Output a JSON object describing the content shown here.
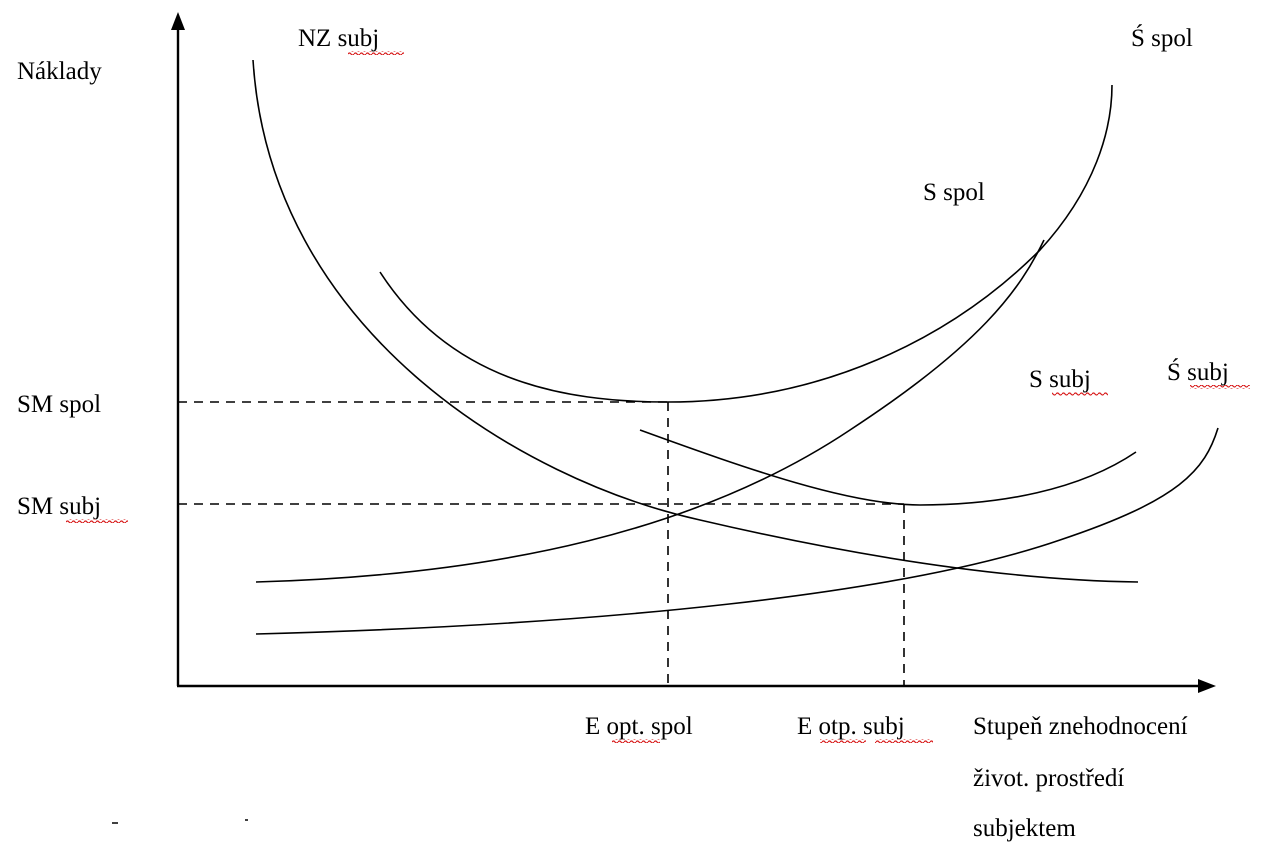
{
  "axes": {
    "y_label": "Náklady",
    "x_label_line1": "Stupeň znehodnocení",
    "x_label_line2": "život. prostředí",
    "x_label_line3": "subjektem"
  },
  "curve_labels": {
    "nz_subj": "NZ subj",
    "s_hat_spol": "Ś spol",
    "s_spol": "S spol",
    "s_subj": "S subj",
    "s_hat_subj": "Ś subj"
  },
  "y_ticks": {
    "sm_spol": "SM spol",
    "sm_subj": "SM subj"
  },
  "x_ticks": {
    "e_opt_spol": "E opt. spol",
    "e_otp_subj": "E otp. subj"
  },
  "colors": {
    "line": "#000000",
    "spellcheck_underline": "#d81e1e"
  }
}
